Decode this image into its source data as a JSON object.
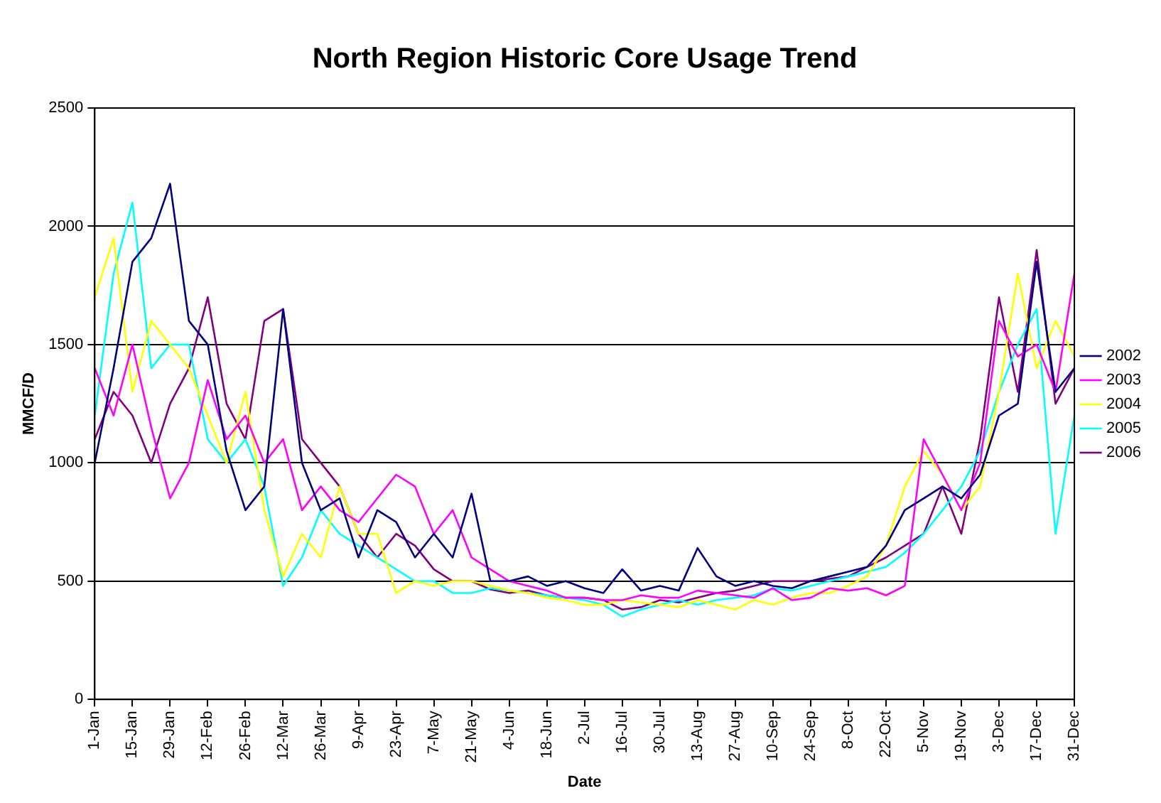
{
  "chart_data": {
    "type": "line",
    "title": "North Region Historic Core Usage Trend",
    "xlabel": "Date",
    "ylabel": "MMCF/D",
    "x": [
      "--01-01",
      "--01-08",
      "--01-15",
      "--01-22",
      "--01-29",
      "--02-05",
      "--02-12",
      "--02-19",
      "--02-26",
      "--03-05",
      "--03-12",
      "--03-19",
      "--03-26",
      "--04-02",
      "--04-09",
      "--04-16",
      "--04-23",
      "--04-30",
      "--05-07",
      "--05-14",
      "--05-21",
      "--05-28",
      "--06-04",
      "--06-11",
      "--06-18",
      "--06-25",
      "--07-02",
      "--07-09",
      "--07-16",
      "--07-23",
      "--07-30",
      "--08-06",
      "--08-13",
      "--08-20",
      "--08-27",
      "--09-03",
      "--09-10",
      "--09-17",
      "--09-24",
      "--10-01",
      "--10-08",
      "--10-15",
      "--10-22",
      "--10-29",
      "--11-05",
      "--11-12",
      "--11-19",
      "--11-26",
      "--12-03",
      "--12-10",
      "--12-17",
      "--12-24",
      "--12-31"
    ],
    "xlim": [
      "--01-01",
      "--12-31"
    ],
    "xticks": [
      {
        "value": "--01-01",
        "label": "1-Jan"
      },
      {
        "value": "--01-15",
        "label": "15-Jan"
      },
      {
        "value": "--01-29",
        "label": "29-Jan"
      },
      {
        "value": "--02-12",
        "label": "12-Feb"
      },
      {
        "value": "--02-26",
        "label": "26-Feb"
      },
      {
        "value": "--03-12",
        "label": "12-Mar"
      },
      {
        "value": "--03-26",
        "label": "26-Mar"
      },
      {
        "value": "--04-09",
        "label": "9-Apr"
      },
      {
        "value": "--04-23",
        "label": "23-Apr"
      },
      {
        "value": "--05-07",
        "label": "7-May"
      },
      {
        "value": "--05-21",
        "label": "21-May"
      },
      {
        "value": "--06-04",
        "label": "4-Jun"
      },
      {
        "value": "--06-18",
        "label": "18-Jun"
      },
      {
        "value": "--07-02",
        "label": "2-Jul"
      },
      {
        "value": "--07-16",
        "label": "16-Jul"
      },
      {
        "value": "--07-30",
        "label": "30-Jul"
      },
      {
        "value": "--08-13",
        "label": "13-Aug"
      },
      {
        "value": "--08-27",
        "label": "27-Aug"
      },
      {
        "value": "--09-10",
        "label": "10-Sep"
      },
      {
        "value": "--09-24",
        "label": "24-Sep"
      },
      {
        "value": "--10-08",
        "label": "8-Oct"
      },
      {
        "value": "--10-22",
        "label": "22-Oct"
      },
      {
        "value": "--11-05",
        "label": "5-Nov"
      },
      {
        "value": "--11-19",
        "label": "19-Nov"
      },
      {
        "value": "--12-03",
        "label": "3-Dec"
      },
      {
        "value": "--12-17",
        "label": "17-Dec"
      },
      {
        "value": "--12-31",
        "label": "31-Dec"
      }
    ],
    "ylim": [
      0,
      2500
    ],
    "yticks": [
      0,
      500,
      1000,
      1500,
      2000,
      2500
    ],
    "grid": "y",
    "legend": "right",
    "marker": "none",
    "line_style": "solid",
    "series": [
      {
        "name": "2002",
        "color": "#000080",
        "values": [
          1000,
          1400,
          1850,
          1950,
          2180,
          1600,
          1500,
          1050,
          800,
          900,
          1650,
          1000,
          800,
          850,
          600,
          800,
          750,
          600,
          700,
          600,
          870,
          500,
          500,
          520,
          480,
          500,
          470,
          450,
          550,
          460,
          480,
          460,
          640,
          520,
          480,
          500,
          480,
          470,
          500,
          520,
          540,
          560,
          650,
          800,
          850,
          900,
          850,
          950,
          1200,
          1250,
          1850,
          1300,
          1400
        ]
      },
      {
        "name": "2003",
        "color": "#ff00ff",
        "values": [
          1400,
          1200,
          1500,
          1150,
          850,
          1000,
          1350,
          1100,
          1200,
          1000,
          1100,
          800,
          900,
          800,
          750,
          850,
          950,
          900,
          700,
          800,
          600,
          550,
          500,
          480,
          460,
          430,
          430,
          420,
          420,
          440,
          430,
          430,
          460,
          450,
          440,
          430,
          470,
          420,
          430,
          470,
          460,
          470,
          440,
          480,
          1100,
          950,
          800,
          1000,
          1600,
          1450,
          1500,
          1300,
          1800
        ]
      },
      {
        "name": "2004",
        "color": "#ffff00",
        "values": [
          1700,
          1950,
          1300,
          1600,
          1500,
          1400,
          1200,
          1000,
          1300,
          800,
          520,
          700,
          600,
          900,
          700,
          700,
          450,
          500,
          480,
          500,
          500,
          480,
          460,
          450,
          430,
          420,
          400,
          400,
          420,
          410,
          400,
          390,
          420,
          400,
          380,
          420,
          400,
          430,
          450,
          450,
          480,
          520,
          650,
          900,
          1050,
          950,
          800,
          900,
          1300,
          1800,
          1400,
          1600,
          1450
        ]
      },
      {
        "name": "2005",
        "color": "#00ffff",
        "values": [
          1200,
          1800,
          2100,
          1400,
          1500,
          1500,
          1100,
          1000,
          1100,
          900,
          480,
          600,
          800,
          700,
          650,
          600,
          550,
          500,
          500,
          450,
          450,
          470,
          460,
          450,
          440,
          430,
          420,
          400,
          350,
          380,
          400,
          420,
          400,
          420,
          430,
          440,
          470,
          460,
          480,
          500,
          520,
          540,
          560,
          620,
          700,
          800,
          900,
          1050,
          1300,
          1500,
          1650,
          700,
          1200
        ]
      },
      {
        "name": "2006",
        "color": "#800080",
        "values": [
          1100,
          1300,
          1200,
          1000,
          1250,
          1400,
          1700,
          1250,
          1100,
          1600,
          1650,
          1100,
          1000,
          900,
          700,
          600,
          700,
          650,
          550,
          500,
          500,
          465,
          450,
          460,
          440,
          430,
          430,
          420,
          380,
          390,
          420,
          410,
          430,
          450,
          460,
          480,
          500,
          500,
          500,
          510,
          520,
          560,
          600,
          650,
          700,
          900,
          700,
          1100,
          1700,
          1300,
          1900,
          1250,
          1400
        ]
      }
    ]
  }
}
